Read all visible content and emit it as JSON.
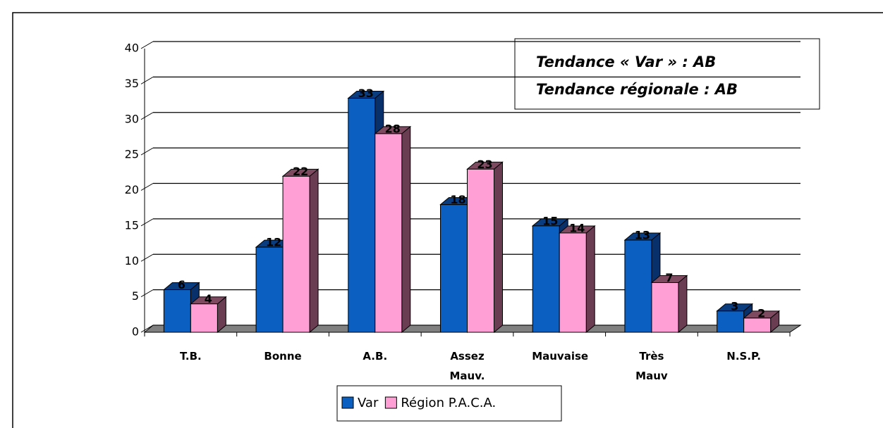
{
  "chart_data": {
    "type": "bar3d",
    "categories": [
      "T.B.",
      "Bonne",
      "A.B.",
      "Assez Mauv.",
      "Mauvaise",
      "Très Mauv",
      "N.S.P."
    ],
    "series": [
      {
        "name": "Var",
        "color": "#0b5fc0",
        "values": [
          6,
          12,
          33,
          18,
          15,
          13,
          3
        ]
      },
      {
        "name": "Région P.A.C.A.",
        "color": "#ff9fd6",
        "values": [
          4,
          22,
          28,
          23,
          14,
          7,
          2
        ]
      }
    ],
    "ylim": [
      0,
      40
    ],
    "yticks": [
      0,
      5,
      10,
      15,
      20,
      25,
      30,
      35,
      40
    ],
    "grid": true,
    "annotations": [
      "Tendance « Var » : AB",
      "Tendance régionale : AB"
    ],
    "legend": "bottom"
  }
}
